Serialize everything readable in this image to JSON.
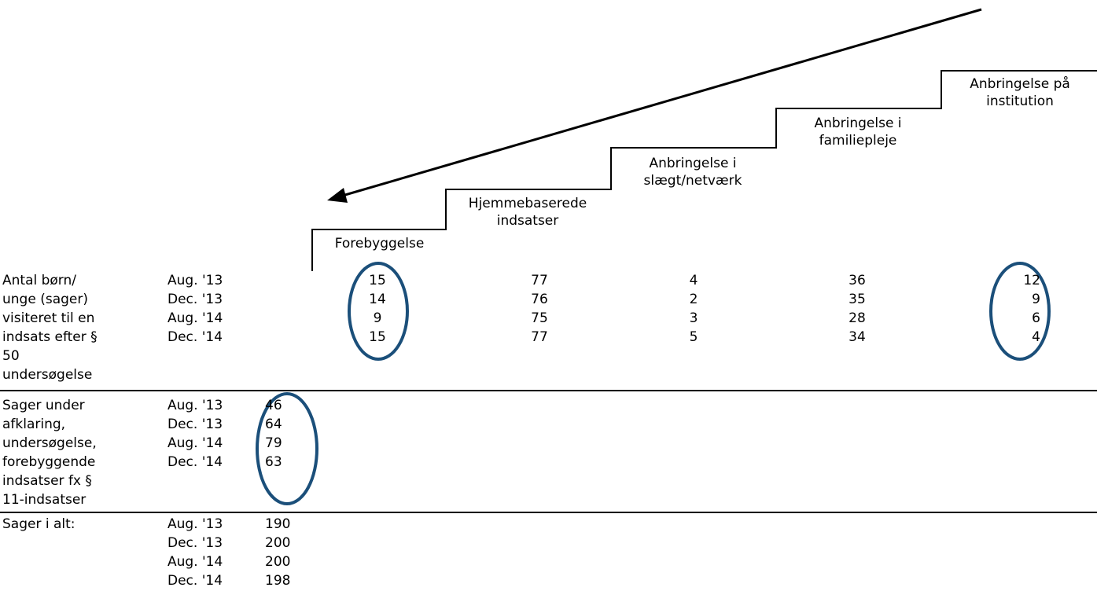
{
  "steps": [
    {
      "label": "Forebyggelse"
    },
    {
      "label": "Hjemmebaserede indsatser"
    },
    {
      "label": "Anbringelse i slægt/netværk"
    },
    {
      "label": "Anbringelse i familiepleje"
    },
    {
      "label": "Anbringelse på institution"
    }
  ],
  "periods": [
    "Aug. '13",
    "Dec. '13",
    "Aug. '14",
    "Dec. '14"
  ],
  "section1": {
    "label_lines": [
      "Antal børn/",
      "unge (sager)",
      "visiteret til en",
      "indsats efter §",
      "50",
      "undersøgelse"
    ],
    "rows": [
      {
        "forebyggelse": "15",
        "hjemme": "77",
        "slaegt": "4",
        "familiepleje": "36",
        "institution": "12"
      },
      {
        "forebyggelse": "14",
        "hjemme": "76",
        "slaegt": "2",
        "familiepleje": "35",
        "institution": "9"
      },
      {
        "forebyggelse": "9",
        "hjemme": "75",
        "slaegt": "3",
        "familiepleje": "28",
        "institution": "6"
      },
      {
        "forebyggelse": "15",
        "hjemme": "77",
        "slaegt": "5",
        "familiepleje": "34",
        "institution": "4"
      }
    ]
  },
  "section2": {
    "label_lines": [
      "Sager under",
      "afklaring,",
      "undersøgelse,",
      "forebyggende",
      "indsatser  fx §",
      "11-indsatser"
    ],
    "values": [
      "46",
      "64",
      "79",
      "63"
    ]
  },
  "section3": {
    "label": "Sager i alt:",
    "values": [
      "190",
      "200",
      "200",
      "198"
    ]
  },
  "colors": {
    "highlight": "#1b4f7a",
    "line": "#000000"
  }
}
